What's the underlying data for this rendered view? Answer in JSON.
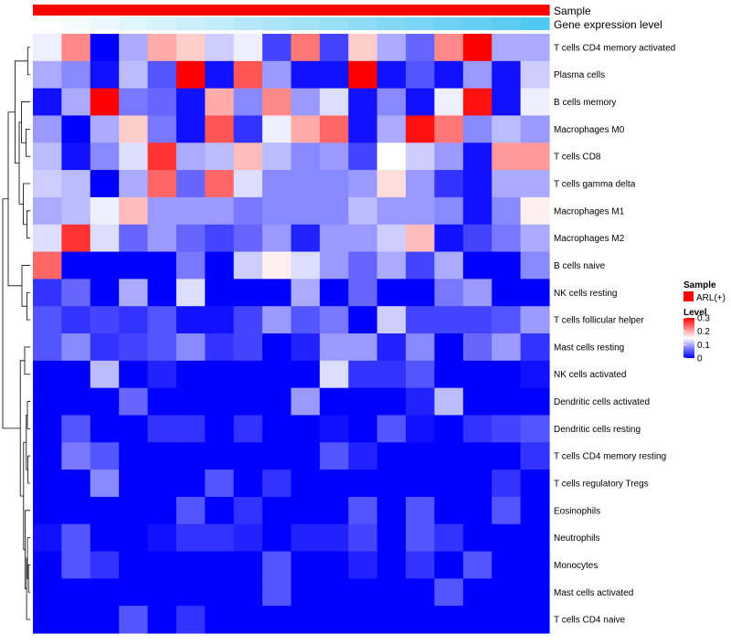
{
  "chart_data": {
    "type": "heatmap",
    "title": "",
    "color_scale": {
      "low": "#0000ff",
      "mid": "#ffffff",
      "high": "#ff0000",
      "domain": [
        0,
        0.15,
        0.3
      ]
    },
    "annotations": [
      {
        "name": "Sample",
        "kind": "categorical",
        "values": [
          "ARL(+)",
          "ARL(+)",
          "ARL(+)",
          "ARL(+)",
          "ARL(+)",
          "ARL(+)",
          "ARL(+)",
          "ARL(+)",
          "ARL(+)",
          "ARL(+)",
          "ARL(+)",
          "ARL(+)",
          "ARL(+)",
          "ARL(+)",
          "ARL(+)",
          "ARL(+)",
          "ARL(+)",
          "ARL(+)"
        ]
      },
      {
        "name": "Gene expression level",
        "kind": "continuous",
        "values": [
          0.0,
          0.06,
          0.12,
          0.18,
          0.24,
          0.29,
          0.35,
          0.41,
          0.47,
          0.53,
          0.59,
          0.65,
          0.71,
          0.76,
          0.82,
          0.88,
          0.94,
          1.0
        ]
      }
    ],
    "legend": {
      "sample_title": "Sample",
      "sample_items": [
        {
          "label": "ARL(+)",
          "color": "#ff0000"
        }
      ],
      "level_title": "Level",
      "level_ticks": [
        "0.3",
        "0.2",
        "0.1",
        "0"
      ],
      "level_tick_values": [
        0.3,
        0.2,
        0.1,
        0
      ],
      "placement": "right"
    },
    "rows": [
      "T cells CD4 memory activated",
      "Plasma cells",
      "B cells memory",
      "Macrophages M0",
      "T cells CD8",
      "T cells gamma delta",
      "Macrophages M1",
      "Macrophages M2",
      "B cells naive",
      "NK cells resting",
      "T cells follicular helper",
      "Mast cells resting",
      "NK cells activated",
      "Dendritic cells activated",
      "Dendritic cells resting",
      "T cells CD4 memory resting",
      "T cells regulatory  Tregs",
      "Eosinophils",
      "Neutrophils",
      "Monocytes",
      "Mast cells activated",
      "T cells CD4 naive"
    ],
    "columns": 18,
    "values": [
      [
        0.14,
        0.22,
        0.0,
        0.1,
        0.2,
        0.18,
        0.12,
        0.14,
        0.04,
        0.23,
        0.04,
        0.18,
        0.1,
        0.06,
        0.22,
        0.3,
        0.1,
        0.1
      ],
      [
        0.1,
        0.08,
        0.01,
        0.11,
        0.05,
        0.3,
        0.01,
        0.25,
        0.09,
        0.01,
        0.01,
        0.3,
        0.01,
        0.05,
        0.01,
        0.09,
        0.01,
        0.12
      ],
      [
        0.01,
        0.1,
        0.3,
        0.07,
        0.06,
        0.01,
        0.2,
        0.08,
        0.22,
        0.09,
        0.13,
        0.01,
        0.08,
        0.01,
        0.14,
        0.29,
        0.01,
        0.14
      ],
      [
        0.09,
        0.0,
        0.1,
        0.18,
        0.07,
        0.01,
        0.25,
        0.03,
        0.14,
        0.2,
        0.24,
        0.01,
        0.1,
        0.29,
        0.23,
        0.08,
        0.11,
        0.09
      ],
      [
        0.11,
        0.01,
        0.08,
        0.13,
        0.27,
        0.1,
        0.11,
        0.19,
        0.11,
        0.08,
        0.09,
        0.04,
        0.15,
        0.12,
        0.09,
        0.01,
        0.21,
        0.21
      ],
      [
        0.12,
        0.11,
        0.0,
        0.1,
        0.24,
        0.06,
        0.24,
        0.13,
        0.08,
        0.08,
        0.08,
        0.09,
        0.17,
        0.09,
        0.03,
        0.01,
        0.1,
        0.1
      ],
      [
        0.1,
        0.11,
        0.14,
        0.19,
        0.09,
        0.09,
        0.09,
        0.07,
        0.08,
        0.08,
        0.08,
        0.11,
        0.09,
        0.09,
        0.08,
        0.01,
        0.08,
        0.16
      ],
      [
        0.13,
        0.27,
        0.13,
        0.06,
        0.09,
        0.06,
        0.04,
        0.06,
        0.09,
        0.02,
        0.09,
        0.09,
        0.12,
        0.19,
        0.01,
        0.04,
        0.07,
        0.1
      ],
      [
        0.24,
        0.0,
        0.0,
        0.0,
        0.0,
        0.07,
        0.0,
        0.12,
        0.16,
        0.13,
        0.09,
        0.06,
        0.1,
        0.04,
        0.1,
        0.0,
        0.0,
        0.08
      ],
      [
        0.03,
        0.06,
        0.0,
        0.1,
        0.0,
        0.13,
        0.0,
        0.0,
        0.0,
        0.1,
        0.0,
        0.06,
        0.0,
        0.0,
        0.07,
        0.09,
        0.0,
        0.0
      ],
      [
        0.05,
        0.03,
        0.04,
        0.03,
        0.05,
        0.01,
        0.01,
        0.04,
        0.09,
        0.05,
        0.07,
        0.0,
        0.12,
        0.04,
        0.04,
        0.04,
        0.05,
        0.09
      ],
      [
        0.05,
        0.08,
        0.03,
        0.04,
        0.05,
        0.08,
        0.03,
        0.04,
        0.0,
        0.02,
        0.09,
        0.09,
        0.02,
        0.08,
        0.0,
        0.06,
        0.09,
        0.03
      ],
      [
        0.0,
        0.0,
        0.11,
        0.0,
        0.02,
        0.0,
        0.0,
        0.0,
        0.0,
        0.0,
        0.13,
        0.03,
        0.03,
        0.05,
        0.0,
        0.0,
        0.0,
        0.01
      ],
      [
        0.0,
        0.0,
        0.0,
        0.06,
        0.0,
        0.0,
        0.0,
        0.0,
        0.0,
        0.09,
        0.0,
        0.0,
        0.0,
        0.02,
        0.11,
        0.0,
        0.0,
        0.0
      ],
      [
        0.0,
        0.05,
        0.0,
        0.0,
        0.03,
        0.03,
        0.0,
        0.03,
        0.0,
        0.0,
        0.01,
        0.0,
        0.05,
        0.01,
        0.0,
        0.03,
        0.04,
        0.05
      ],
      [
        0.0,
        0.07,
        0.05,
        0.0,
        0.0,
        0.0,
        0.0,
        0.0,
        0.0,
        0.0,
        0.05,
        0.02,
        0.0,
        0.0,
        0.0,
        0.0,
        0.0,
        0.03
      ],
      [
        0.0,
        0.0,
        0.08,
        0.0,
        0.0,
        0.0,
        0.05,
        0.0,
        0.03,
        0.0,
        0.0,
        0.0,
        0.0,
        0.0,
        0.0,
        0.0,
        0.03,
        0.0
      ],
      [
        0.0,
        0.0,
        0.0,
        0.0,
        0.0,
        0.05,
        0.0,
        0.03,
        0.0,
        0.0,
        0.0,
        0.05,
        0.0,
        0.05,
        0.0,
        0.0,
        0.05,
        0.0
      ],
      [
        0.01,
        0.05,
        0.0,
        0.0,
        0.01,
        0.03,
        0.03,
        0.02,
        0.0,
        0.02,
        0.02,
        0.04,
        0.0,
        0.05,
        0.03,
        0.0,
        0.0,
        0.0
      ],
      [
        0.0,
        0.05,
        0.03,
        0.0,
        0.0,
        0.0,
        0.0,
        0.0,
        0.05,
        0.0,
        0.0,
        0.02,
        0.0,
        0.03,
        0.0,
        0.05,
        0.0,
        0.0
      ],
      [
        0.0,
        0.0,
        0.0,
        0.0,
        0.0,
        0.0,
        0.0,
        0.0,
        0.05,
        0.0,
        0.0,
        0.0,
        0.0,
        0.0,
        0.05,
        0.0,
        0.0,
        0.0
      ],
      [
        0.0,
        0.0,
        0.0,
        0.05,
        0.0,
        0.03,
        0.0,
        0.0,
        0.0,
        0.0,
        0.0,
        0.0,
        0.0,
        0.0,
        0.0,
        0.0,
        0.0,
        0.0
      ]
    ],
    "row_dendrogram": [
      {
        "a": 0,
        "b": 1,
        "h": 0.09
      },
      {
        "a": 3,
        "b": 4,
        "h": 0.15
      },
      {
        "a": 2,
        "b": "n1",
        "h": 0.32
      },
      {
        "a": 6,
        "b": 7,
        "h": 0.12
      },
      {
        "a": 5,
        "b": "n3",
        "h": 0.25
      },
      {
        "a": "n2",
        "b": "n4",
        "h": 0.4
      },
      {
        "a": "n0",
        "b": "n5",
        "h": 0.55
      },
      {
        "a": 9,
        "b": 10,
        "h": 0.12
      },
      {
        "a": 8,
        "b": "n7",
        "h": 0.3
      },
      {
        "a": "n6",
        "b": "n8",
        "h": 0.8
      },
      {
        "a": 13,
        "b": 14,
        "h": 0.1
      },
      {
        "a": 15,
        "b": 16,
        "h": 0.08
      },
      {
        "a": "n10",
        "b": "n11",
        "h": 0.14
      },
      {
        "a": 19,
        "b": 20,
        "h": 0.06
      },
      {
        "a": 18,
        "b": "n13",
        "h": 0.1
      },
      {
        "a": "n14",
        "b": 21,
        "h": 0.13
      },
      {
        "a": 17,
        "b": "n15",
        "h": 0.18
      },
      {
        "a": "n12",
        "b": "n16",
        "h": 0.24
      },
      {
        "a": 11,
        "b": 12,
        "h": 0.2
      },
      {
        "a": "n18",
        "b": "n17",
        "h": 0.36
      },
      {
        "a": "n9",
        "b": "n19",
        "h": 1.0
      }
    ]
  }
}
